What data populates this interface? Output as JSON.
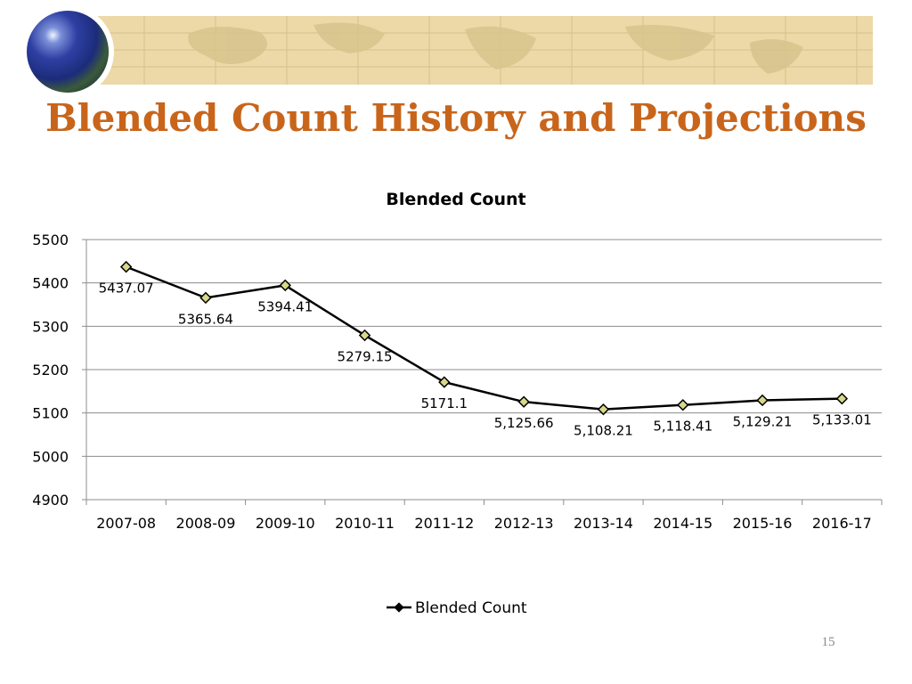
{
  "slide": {
    "title": "Blended Count History and Projections",
    "page_number": "15"
  },
  "colors": {
    "title": "#c8651b",
    "banner": "#ecd9a7",
    "series_line": "#000000",
    "marker_fill": "#d8d88a",
    "gridline": "#8c8c8c"
  },
  "chart_data": {
    "type": "line",
    "title": "Blended Count",
    "xlabel": "",
    "ylabel": "",
    "ylim": [
      4900,
      5500
    ],
    "yticks": [
      "4900",
      "5000",
      "5100",
      "5200",
      "5300",
      "5400",
      "5500"
    ],
    "categories": [
      "2007-08",
      "2008-09",
      "2009-10",
      "2010-11",
      "2011-12",
      "2012-13",
      "2013-14",
      "2014-15",
      "2015-16",
      "2016-17"
    ],
    "series": [
      {
        "name": "Blended Count",
        "values": [
          5437.07,
          5365.64,
          5394.41,
          5279.15,
          5171.1,
          5125.66,
          5108.21,
          5118.41,
          5129.21,
          5133.01
        ],
        "labels": [
          "5437.07",
          "5365.64",
          "5394.41",
          "5279.15",
          "5171.1",
          "5,125.66",
          "5,108.21",
          "5,118.41",
          "5,129.21",
          "5,133.01"
        ]
      }
    ],
    "grid": true,
    "legend_position": "bottom"
  }
}
